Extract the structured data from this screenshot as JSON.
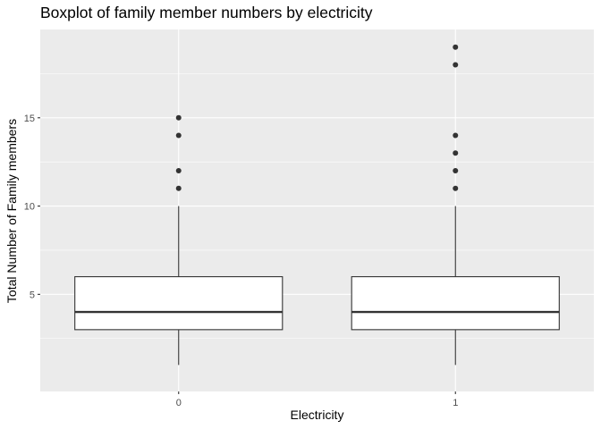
{
  "chart_data": {
    "type": "boxplot",
    "title": "Boxplot of family member numbers by electricity",
    "xlabel": "Electricity",
    "ylabel": "Total Number of Family members",
    "categories": [
      "0",
      "1"
    ],
    "y_ticks": [
      5,
      10,
      15
    ],
    "y_tick_labels": [
      "5",
      "10",
      "15"
    ],
    "ylim": [
      -0.5,
      20
    ],
    "grid": true,
    "boxes": [
      {
        "category": "0",
        "whisker_low": 1,
        "q1": 3,
        "median": 4,
        "q3": 6,
        "whisker_high": 10,
        "outliers": [
          11,
          12,
          14,
          15
        ]
      },
      {
        "category": "1",
        "whisker_low": 1,
        "q1": 3,
        "median": 4,
        "q3": 6,
        "whisker_high": 10,
        "outliers": [
          11,
          12,
          13,
          14,
          18,
          19
        ]
      }
    ],
    "colors": {
      "panel_background": "#ebebeb",
      "grid_major": "#ffffff",
      "box_fill": "#ffffff",
      "box_line": "#333333",
      "outlier": "#333333"
    }
  }
}
